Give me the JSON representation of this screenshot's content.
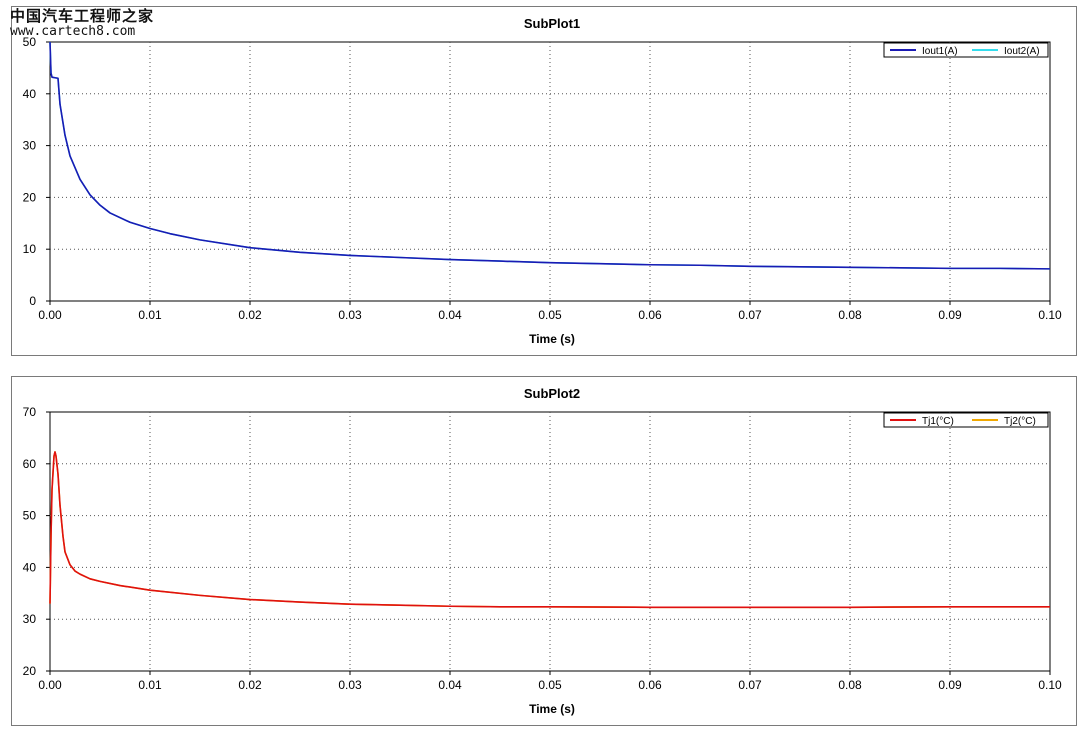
{
  "watermark": {
    "title_cn": "中国汽车工程师之家",
    "url": "www.cartech8.com"
  },
  "chart_data": [
    {
      "type": "line",
      "title": "SubPlot1",
      "xlabel": "Time (s)",
      "ylabel": "",
      "xlim": [
        0,
        0.1
      ],
      "ylim": [
        0,
        50
      ],
      "xticks": [
        0,
        0.01,
        0.02,
        0.03,
        0.04,
        0.05,
        0.06,
        0.07,
        0.08,
        0.09,
        0.1
      ],
      "xtick_labels": [
        "0.00",
        "0.01",
        "0.02",
        "0.03",
        "0.04",
        "0.05",
        "0.06",
        "0.07",
        "0.08",
        "0.09",
        "0.10"
      ],
      "yticks": [
        0,
        10,
        20,
        30,
        40,
        50
      ],
      "ytick_labels": [
        "0",
        "10",
        "20",
        "30",
        "40",
        "50"
      ],
      "grid": true,
      "legend_position": "top-right",
      "legend": [
        {
          "name": "Iout1(A)",
          "color": "#1a1ab4"
        },
        {
          "name": "Iout2(A)",
          "color": "#33ddee"
        }
      ],
      "series": [
        {
          "name": "Iout1(A)",
          "color": "#1a1ab4",
          "x": [
            0,
            0.0001,
            0.0002,
            0.0005,
            0.0008,
            0.001,
            0.0015,
            0.002,
            0.003,
            0.004,
            0.005,
            0.006,
            0.008,
            0.01,
            0.012,
            0.015,
            0.02,
            0.025,
            0.03,
            0.035,
            0.04,
            0.045,
            0.05,
            0.055,
            0.06,
            0.065,
            0.07,
            0.075,
            0.08,
            0.085,
            0.09,
            0.095,
            0.1
          ],
          "y": [
            50,
            44,
            43.2,
            43.1,
            43,
            38,
            32,
            28,
            23.5,
            20.5,
            18.5,
            17,
            15.2,
            14,
            13,
            11.8,
            10.3,
            9.4,
            8.8,
            8.4,
            8.0,
            7.7,
            7.4,
            7.2,
            7.0,
            6.9,
            6.7,
            6.6,
            6.5,
            6.4,
            6.3,
            6.3,
            6.2
          ]
        },
        {
          "name": "Iout2(A)",
          "color": "#33ddee",
          "x": [
            0,
            0.0001,
            0.0002,
            0.0005,
            0.0008,
            0.001,
            0.0015,
            0.002,
            0.003,
            0.004,
            0.005,
            0.006,
            0.008,
            0.01,
            0.012,
            0.015,
            0.02,
            0.025,
            0.03,
            0.035,
            0.04,
            0.045,
            0.05,
            0.055,
            0.06,
            0.065,
            0.07,
            0.075,
            0.08,
            0.085,
            0.09,
            0.095,
            0.1
          ],
          "y": [
            50,
            44,
            43.2,
            43.1,
            43,
            38,
            32,
            28,
            23.5,
            20.5,
            18.5,
            17,
            15.2,
            14,
            13,
            11.8,
            10.3,
            9.4,
            8.8,
            8.4,
            8.0,
            7.7,
            7.4,
            7.2,
            7.0,
            6.9,
            6.7,
            6.6,
            6.5,
            6.4,
            6.3,
            6.3,
            6.2
          ]
        }
      ]
    },
    {
      "type": "line",
      "title": "SubPlot2",
      "xlabel": "Time (s)",
      "ylabel": "",
      "xlim": [
        0,
        0.1
      ],
      "ylim": [
        20,
        70
      ],
      "xticks": [
        0,
        0.01,
        0.02,
        0.03,
        0.04,
        0.05,
        0.06,
        0.07,
        0.08,
        0.09,
        0.1
      ],
      "xtick_labels": [
        "0.00",
        "0.01",
        "0.02",
        "0.03",
        "0.04",
        "0.05",
        "0.06",
        "0.07",
        "0.08",
        "0.09",
        "0.10"
      ],
      "yticks": [
        20,
        30,
        40,
        50,
        60,
        70
      ],
      "ytick_labels": [
        "20",
        "30",
        "40",
        "50",
        "60",
        "70"
      ],
      "grid": true,
      "legend_position": "top-right",
      "legend": [
        {
          "name": "Tj1(°C)",
          "color": "#e01010"
        },
        {
          "name": "Tj2(°C)",
          "color": "#f0a800"
        }
      ],
      "series": [
        {
          "name": "Tj1(°C)",
          "color": "#e01010",
          "x": [
            0,
            0.0001,
            0.0002,
            0.0004,
            0.0005,
            0.0006,
            0.0008,
            0.001,
            0.0013,
            0.0015,
            0.002,
            0.0025,
            0.003,
            0.004,
            0.005,
            0.007,
            0.01,
            0.015,
            0.02,
            0.025,
            0.03,
            0.035,
            0.04,
            0.045,
            0.05,
            0.06,
            0.07,
            0.08,
            0.09,
            0.1
          ],
          "y": [
            33,
            46,
            55,
            61.5,
            62.3,
            61.5,
            58,
            52,
            46,
            43,
            40.5,
            39.3,
            38.7,
            37.8,
            37.3,
            36.5,
            35.6,
            34.6,
            33.8,
            33.3,
            32.9,
            32.7,
            32.5,
            32.4,
            32.4,
            32.3,
            32.3,
            32.3,
            32.4,
            32.4
          ]
        },
        {
          "name": "Tj2(°C)",
          "color": "#f0a800",
          "x": [
            0,
            0.0001,
            0.0002,
            0.0004,
            0.0005,
            0.0006,
            0.0008,
            0.001,
            0.0013,
            0.0015,
            0.002,
            0.0025,
            0.003,
            0.004,
            0.005,
            0.007,
            0.01,
            0.015,
            0.02,
            0.025,
            0.03,
            0.035,
            0.04,
            0.045,
            0.05,
            0.06,
            0.07,
            0.08,
            0.09,
            0.1
          ],
          "y": [
            33,
            46,
            55,
            61.5,
            62.3,
            61.5,
            58,
            52,
            46,
            43,
            40.5,
            39.3,
            38.7,
            37.8,
            37.3,
            36.5,
            35.6,
            34.6,
            33.8,
            33.3,
            32.9,
            32.7,
            32.5,
            32.4,
            32.4,
            32.3,
            32.3,
            32.3,
            32.4,
            32.4
          ]
        }
      ]
    }
  ]
}
